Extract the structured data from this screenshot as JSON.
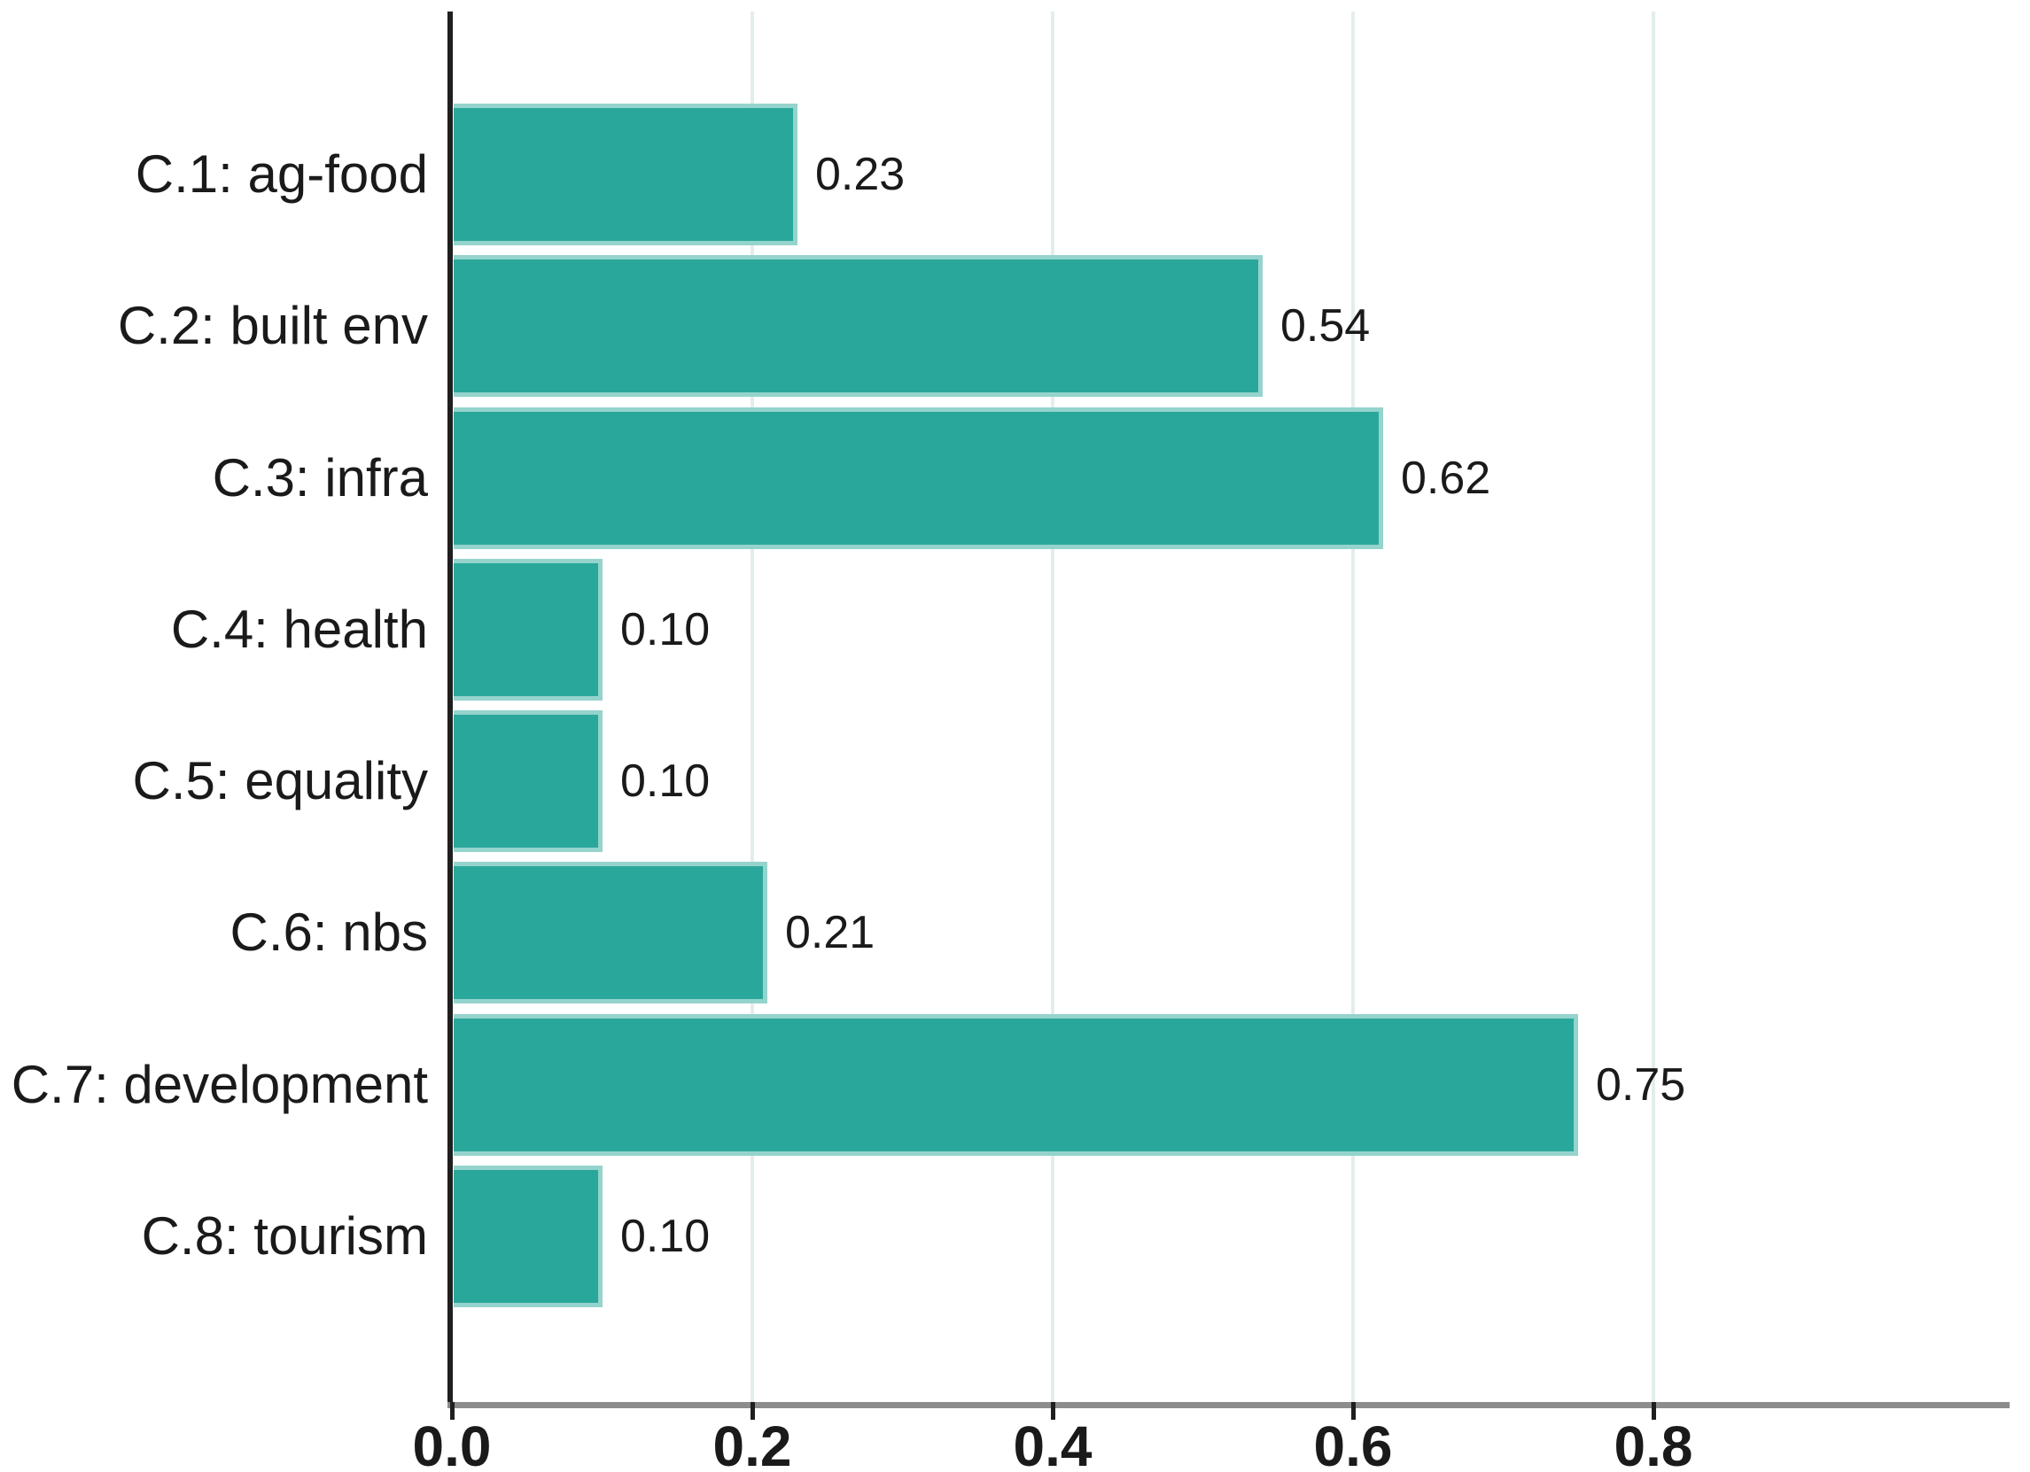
{
  "chart_data": {
    "type": "bar",
    "orientation": "horizontal",
    "title": "",
    "xlabel": "",
    "ylabel": "",
    "categories": [
      "C.1: ag-food",
      "C.2: built env",
      "C.3: infra",
      "C.4: health",
      "C.5: equality",
      "C.6: nbs",
      "C.7: development",
      "C.8: tourism"
    ],
    "values": [
      0.23,
      0.54,
      0.62,
      0.1,
      0.1,
      0.21,
      0.75,
      0.1
    ],
    "value_labels": [
      "0.23",
      "0.54",
      "0.62",
      "0.10",
      "0.10",
      "0.21",
      "0.75",
      "0.10"
    ],
    "x_ticks": [
      0.0,
      0.2,
      0.4,
      0.6,
      0.8
    ],
    "x_tick_labels": [
      "0.0",
      "0.2",
      "0.4",
      "0.6",
      "0.8"
    ],
    "xlim": [
      0,
      1.037
    ],
    "grid": "vertical-on",
    "legend": "none",
    "colors": {
      "bar_fill": "#2aa79b",
      "bar_edge": "rgba(255,255,255,0.5)",
      "gridline": "#e3eeec",
      "x_axis_line": "#8c8c8c",
      "y_axis_line": "#1f1f1f",
      "text": "#1a1a1a",
      "background": "#ffffff"
    }
  }
}
